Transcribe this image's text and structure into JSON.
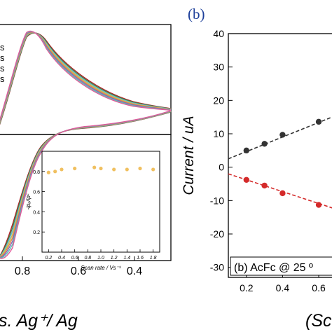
{
  "chart_data": [
    {
      "panel": "a",
      "type": "line",
      "title": "",
      "xlabel": "s. Ag⁺/ Ag",
      "ylabel": "",
      "x_ticks": [
        "0.8",
        "0.6",
        "0.4"
      ],
      "xlim": [
        0.885,
        0.27
      ],
      "legend_fragments": [
        "s",
        "s",
        "s",
        "s"
      ],
      "curve_colors": [
        "#b0212a",
        "#3a8a45",
        "#6ab0d8",
        "#c9c24a",
        "#e08a4a",
        "#8a5fb8",
        "#55c4b0",
        "#e05a9a"
      ],
      "inset": {
        "type": "scatter",
        "xlabel": "Scan rate / Vs⁻¹",
        "ylabel": "-ipₐ/ipᶜ",
        "x_ticks": [
          "0.2",
          "0.4",
          "0.6",
          "0.8",
          "1.0",
          "1.2",
          "1.4",
          "1.6",
          "1.8"
        ],
        "xlim": [
          0.1,
          1.9
        ],
        "ylim": [
          0.0,
          1.0
        ],
        "y_ticks": [
          "0.2",
          "0.4",
          "0.6",
          "0.8"
        ],
        "point_color": "#f0c060",
        "points": [
          {
            "x": 0.2,
            "y": 0.79
          },
          {
            "x": 0.3,
            "y": 0.8
          },
          {
            "x": 0.4,
            "y": 0.82
          },
          {
            "x": 0.6,
            "y": 0.83
          },
          {
            "x": 0.9,
            "y": 0.84
          },
          {
            "x": 1.0,
            "y": 0.83
          },
          {
            "x": 1.2,
            "y": 0.82
          },
          {
            "x": 1.4,
            "y": 0.82
          },
          {
            "x": 1.6,
            "y": 0.83
          },
          {
            "x": 1.8,
            "y": 0.82
          }
        ]
      }
    },
    {
      "panel": "b",
      "type": "scatter",
      "label": "(b)",
      "xlabel": "(Sc",
      "ylabel": "Current / uA",
      "annotation": "(b) AcFc @ 25 º",
      "xlim": [
        0.1,
        0.72
      ],
      "ylim": [
        -33,
        40
      ],
      "x_ticks": [
        "0.2",
        "0.4",
        "0.6"
      ],
      "y_ticks": [
        "40",
        "30",
        "20",
        "10",
        "0",
        "-10",
        "-20",
        "-30"
      ],
      "series": [
        {
          "color": "#333333",
          "points": [
            {
              "x": 0.2,
              "y": 5.0
            },
            {
              "x": 0.3,
              "y": 7.0
            },
            {
              "x": 0.4,
              "y": 9.7
            },
            {
              "x": 0.6,
              "y": 13.6
            }
          ],
          "fit": {
            "x": [
              0.1,
              0.72
            ],
            "y": [
              2.5,
              16.0
            ]
          }
        },
        {
          "color": "#d42a2a",
          "points": [
            {
              "x": 0.2,
              "y": -3.8
            },
            {
              "x": 0.3,
              "y": -5.5
            },
            {
              "x": 0.4,
              "y": -7.8
            },
            {
              "x": 0.6,
              "y": -11.3
            }
          ],
          "fit": {
            "x": [
              0.1,
              0.72
            ],
            "y": [
              -2.0,
              -13.0
            ]
          }
        }
      ]
    }
  ]
}
